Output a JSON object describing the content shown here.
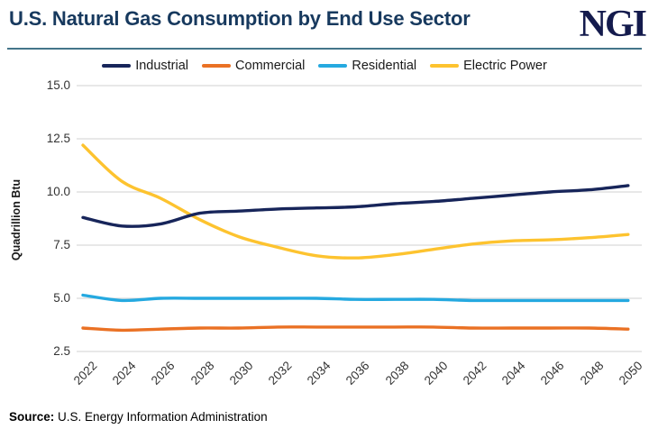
{
  "header": {
    "title": "U.S. Natural Gas Consumption by End Use Sector",
    "logo": "NGI"
  },
  "source": {
    "label": "Source:",
    "text": " U.S. Energy Information Administration"
  },
  "colors": {
    "title": "#17395e",
    "logo": "#141b4d",
    "rule": "#44758a",
    "gridline": "#d9d9d9",
    "tick_text": "#333333"
  },
  "chart_data": {
    "type": "line",
    "title": "U.S. Natural Gas Consumption by End Use Sector",
    "xlabel": "",
    "ylabel": "Quadrillion Btu",
    "x": [
      2022,
      2024,
      2026,
      2028,
      2030,
      2032,
      2034,
      2036,
      2038,
      2040,
      2042,
      2044,
      2046,
      2048,
      2050
    ],
    "series": [
      {
        "name": "Industrial",
        "color": "#17255a",
        "values": [
          8.8,
          8.4,
          8.5,
          9.0,
          9.1,
          9.2,
          9.25,
          9.3,
          9.45,
          9.55,
          9.7,
          9.85,
          10.0,
          10.1,
          10.3
        ]
      },
      {
        "name": "Commercial",
        "color": "#ea7124",
        "values": [
          3.6,
          3.5,
          3.55,
          3.6,
          3.6,
          3.65,
          3.65,
          3.65,
          3.65,
          3.65,
          3.6,
          3.6,
          3.6,
          3.6,
          3.55
        ]
      },
      {
        "name": "Residential",
        "color": "#25a9e0",
        "values": [
          5.15,
          4.9,
          5.0,
          5.0,
          5.0,
          5.0,
          5.0,
          4.95,
          4.95,
          4.95,
          4.9,
          4.9,
          4.9,
          4.9,
          4.9
        ]
      },
      {
        "name": "Electric Power",
        "color": "#fdc32f",
        "values": [
          12.2,
          10.5,
          9.7,
          8.7,
          7.9,
          7.4,
          7.0,
          6.9,
          7.05,
          7.3,
          7.55,
          7.7,
          7.75,
          7.85,
          8.0
        ]
      }
    ],
    "ylim": [
      2.5,
      15.0
    ],
    "yticks": [
      15.0,
      12.5,
      10.0,
      7.5,
      5.0,
      2.5
    ],
    "grid": true,
    "legend_position": "top"
  }
}
